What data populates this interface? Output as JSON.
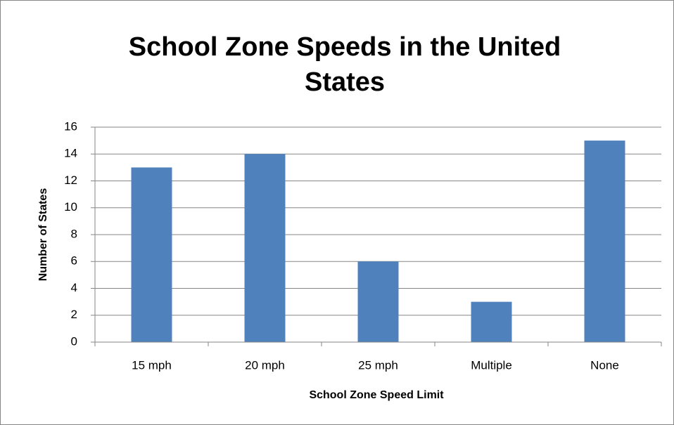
{
  "chart_data": {
    "type": "bar",
    "title": "School Zone Speeds in the United States",
    "x_label": "School Zone Speed Limit",
    "y_label": "Number of States",
    "categories": [
      "15 mph",
      "20 mph",
      "25 mph",
      "Multiple",
      "None"
    ],
    "values": [
      13,
      14,
      6,
      3,
      15
    ],
    "color": "#4f81bd",
    "ylim": [
      0,
      16
    ],
    "yticks": [
      0,
      2,
      4,
      6,
      8,
      10,
      12,
      14,
      16
    ],
    "grid": true
  }
}
